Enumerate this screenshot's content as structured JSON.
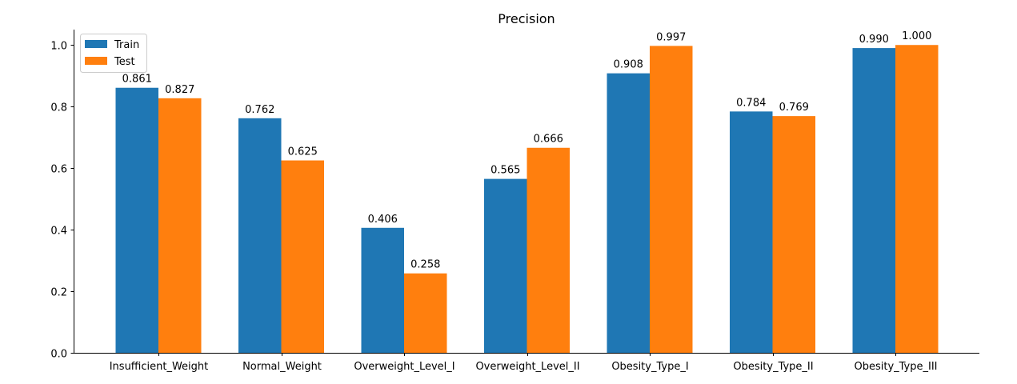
{
  "chart_data": {
    "type": "bar",
    "title": "Precision",
    "xlabel": "",
    "ylabel": "",
    "categories": [
      "Insufficient_Weight",
      "Normal_Weight",
      "Overweight_Level_I",
      "Overweight_Level_II",
      "Obesity_Type_I",
      "Obesity_Type_II",
      "Obesity_Type_III"
    ],
    "series": [
      {
        "name": "Train",
        "color": "#1f77b4",
        "values": [
          0.861,
          0.762,
          0.406,
          0.565,
          0.908,
          0.784,
          0.99
        ],
        "labels": [
          "0.861",
          "0.762",
          "0.406",
          "0.565",
          "0.908",
          "0.784",
          "0.990"
        ]
      },
      {
        "name": "Test",
        "color": "#ff7f0e",
        "values": [
          0.827,
          0.625,
          0.258,
          0.666,
          0.997,
          0.769,
          1.0
        ],
        "labels": [
          "0.827",
          "0.625",
          "0.258",
          "0.666",
          "0.997",
          "0.769",
          "1.000"
        ]
      }
    ],
    "ylim": [
      0,
      1.05
    ],
    "yticks": [
      0.0,
      0.2,
      0.4,
      0.6,
      0.8,
      1.0
    ],
    "ytick_labels": [
      "0.0",
      "0.2",
      "0.4",
      "0.6",
      "0.8",
      "1.0"
    ],
    "grid": false,
    "legend": "top-left"
  }
}
